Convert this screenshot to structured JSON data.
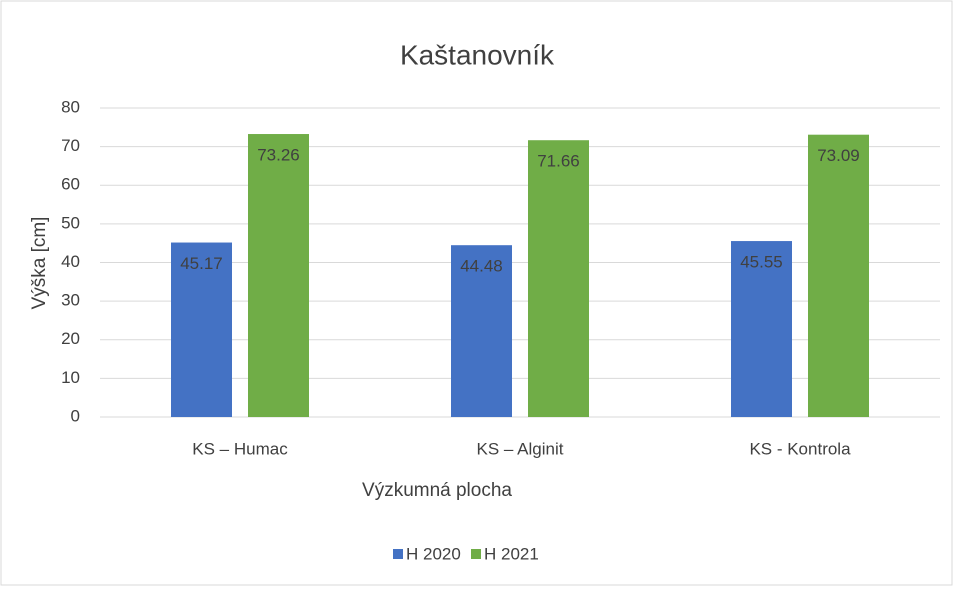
{
  "chart_data": {
    "type": "bar",
    "title": "Kaštanovník",
    "x_label": "Výzkumná plocha",
    "y_label": "Výška [cm]",
    "categories": [
      "KS – Humac",
      "KS – Alginit",
      "KS - Kontrola"
    ],
    "series": [
      {
        "name": "H 2020",
        "color": "#4472c4",
        "values": [
          45.17,
          44.48,
          45.55
        ]
      },
      {
        "name": "H 2021",
        "color": "#70ad47",
        "values": [
          73.26,
          71.66,
          73.09
        ]
      }
    ],
    "ylim": [
      0,
      80
    ],
    "yticks": [
      0,
      10,
      20,
      30,
      40,
      50,
      60,
      70,
      80
    ],
    "grid": true,
    "legend": "bottom"
  }
}
